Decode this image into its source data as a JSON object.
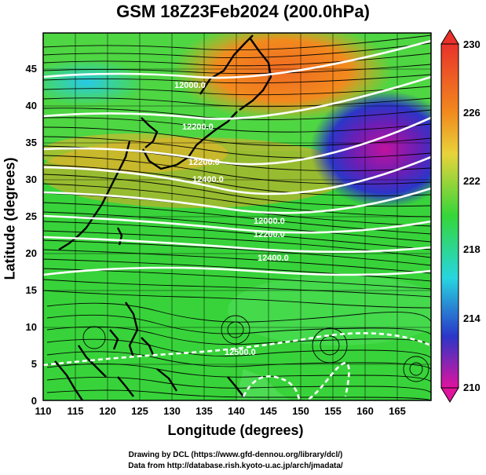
{
  "title": "GSM 18Z23Feb2024 (200.0hPa)",
  "xlabel": "Longitude (degrees)",
  "ylabel": "Latitude  (degrees)",
  "credit_line1": "Drawing by DCL (https://www.gfd-dennou.org/library/dcl/)",
  "credit_line2": "Data from http://database.rish.kyoto-u.ac.jp/arch/jmadata/",
  "x_ticks": [
    "110",
    "115",
    "120",
    "125",
    "130",
    "135",
    "140",
    "145",
    "150",
    "155",
    "160",
    "165"
  ],
  "y_ticks": [
    "0",
    "5",
    "10",
    "15",
    "20",
    "25",
    "30",
    "35",
    "40",
    "45"
  ],
  "colorbar_ticks": [
    "230",
    "226",
    "222",
    "218",
    "214",
    "210"
  ],
  "contour_labels": [
    "12000.0",
    "12200.0",
    "12200.0",
    "12400.0",
    "12000.0",
    "12200.0",
    "12400.0",
    "12500.0"
  ],
  "colors": {
    "orange": "#f28a1e",
    "yellow": "#e8d33a",
    "green": "#35d63a",
    "cyan": "#27d6e0",
    "blue": "#2b36c8",
    "magenta": "#e0139e",
    "red": "#e8322a"
  },
  "chart_data": {
    "type": "heatmap",
    "title": "GSM 18Z23Feb2024 (200.0hPa)",
    "xlabel": "Longitude (degrees)",
    "ylabel": "Latitude  (degrees)",
    "xlim": [
      110,
      170
    ],
    "ylim": [
      0,
      50
    ],
    "colorbar": {
      "min": 210,
      "max": 230,
      "ticks": [
        210,
        214,
        218,
        222,
        226,
        230
      ]
    },
    "contour_levels": [
      12000.0,
      12200.0,
      12400.0,
      12500.0
    ],
    "overlays": [
      "coastlines",
      "streamlines",
      "geopotential-height-contours",
      "grid"
    ]
  }
}
